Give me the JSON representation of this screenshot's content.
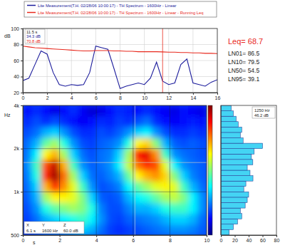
{
  "chart_data": [
    {
      "type": "line",
      "series": [
        {
          "name": "Lite Measurement(T.H. 02/28/06 10:00:17) - TH Spectrum - 1600Hz - Linear",
          "color": "#1c1c9c",
          "values": [
            35,
            38,
            55,
            72,
            68,
            45,
            30,
            28,
            30,
            29,
            30,
            45,
            78,
            76,
            74,
            50,
            25,
            28,
            30,
            32,
            30,
            38,
            58,
            34.3,
            30,
            32,
            55,
            62,
            32,
            30,
            28,
            33,
            36
          ]
        },
        {
          "name": "Lite Measurement(T.H. 02/28/06 10:00:17) - TH Spectrum - 1600Hz - Linear - Running Leq",
          "color": "#e8281c",
          "values": [
            78,
            77,
            76,
            75.5,
            75,
            74.5,
            74,
            73.5,
            73,
            72.5,
            72,
            72,
            72.5,
            72.5,
            72.5,
            72,
            72,
            71.5,
            71.5,
            71,
            71,
            71,
            71,
            70.8,
            70.5,
            70.5,
            70,
            70,
            69.5,
            69.5,
            69,
            69,
            68.7
          ]
        }
      ],
      "x": [
        0,
        0.5,
        1,
        1.5,
        2,
        2.5,
        3,
        3.5,
        4,
        4.5,
        5,
        5.5,
        6,
        6.5,
        7,
        7.5,
        8,
        8.5,
        9,
        9.5,
        10,
        10.5,
        11,
        11.5,
        12,
        12.5,
        13,
        13.5,
        14,
        14.5,
        15,
        15.5,
        16
      ],
      "xlim": [
        0,
        16
      ],
      "xticks": [
        0,
        2,
        4,
        6,
        8,
        10,
        12,
        14,
        16
      ],
      "ylim": [
        20,
        100
      ],
      "yticks": [
        20,
        40,
        60,
        80,
        100
      ],
      "y_label": "dB",
      "grid": true,
      "legend": "top",
      "cursor": {
        "x": 11.5,
        "texts": [
          "11.5 s",
          "34.3 dB",
          "70.8 dB"
        ]
      },
      "stats": [
        "Leq= 68.7",
        "LN01= 86.5",
        "LN10= 79.5",
        "LN50= 54.5",
        "LN95= 39.1"
      ]
    },
    {
      "type": "heatmap",
      "x_bins": [
        0,
        0.5,
        1,
        1.5,
        2,
        2.5,
        3,
        3.5,
        4,
        4.5,
        5,
        5.5,
        6,
        6.5,
        7,
        7.5,
        8,
        8.5,
        9,
        9.5,
        10
      ],
      "y_bins": [
        500,
        595,
        707,
        841,
        1000,
        1189,
        1414,
        1682,
        2000,
        2378,
        2828,
        3364,
        4000
      ],
      "cells": [
        [
          30,
          32,
          34,
          35,
          36,
          38,
          40,
          38,
          34,
          31,
          30,
          31,
          32,
          33,
          34,
          35,
          36,
          36,
          35,
          33
        ],
        [
          31,
          34,
          38,
          40,
          42,
          44,
          46,
          42,
          36,
          32,
          31,
          33,
          34,
          35,
          36,
          38,
          40,
          40,
          38,
          34
        ],
        [
          32,
          36,
          44,
          48,
          50,
          52,
          50,
          44,
          35,
          32,
          32,
          35,
          38,
          38,
          40,
          44,
          46,
          46,
          42,
          36
        ],
        [
          33,
          38,
          52,
          58,
          58,
          56,
          50,
          40,
          33,
          32,
          33,
          38,
          42,
          44,
          48,
          52,
          54,
          50,
          42,
          36
        ],
        [
          34,
          40,
          62,
          70,
          64,
          56,
          46,
          36,
          32,
          33,
          35,
          42,
          48,
          52,
          56,
          58,
          56,
          46,
          38,
          34
        ],
        [
          35,
          44,
          70,
          78,
          66,
          52,
          40,
          34,
          33,
          35,
          38,
          48,
          58,
          62,
          64,
          60,
          50,
          40,
          35,
          33
        ],
        [
          36,
          46,
          68,
          76,
          62,
          46,
          36,
          33,
          34,
          36,
          42,
          54,
          66,
          70,
          68,
          56,
          42,
          36,
          34,
          33
        ],
        [
          35,
          42,
          58,
          62,
          52,
          40,
          34,
          32,
          34,
          35,
          40,
          52,
          72,
          74,
          64,
          46,
          36,
          34,
          33,
          32
        ],
        [
          34,
          38,
          48,
          52,
          44,
          36,
          32,
          31,
          33,
          34,
          36,
          44,
          58,
          60,
          50,
          38,
          33,
          32,
          33,
          32
        ],
        [
          32,
          34,
          38,
          40,
          36,
          32,
          30,
          30,
          32,
          31,
          33,
          36,
          40,
          42,
          36,
          32,
          30,
          30,
          31,
          30
        ],
        [
          30,
          32,
          30,
          32,
          30,
          28,
          27,
          28,
          30,
          29,
          31,
          30,
          32,
          34,
          30,
          28,
          27,
          28,
          29,
          28
        ],
        [
          28,
          30,
          28,
          26,
          28,
          30,
          27,
          25,
          26,
          28,
          30,
          29,
          28,
          30,
          28,
          27,
          26,
          28,
          27,
          26
        ]
      ],
      "color_range": [
        20,
        80
      ],
      "xlim": [
        0,
        10
      ],
      "xticks": [
        0,
        2,
        4,
        6,
        8,
        10
      ],
      "ylim": [
        500,
        4000
      ],
      "yticks": [
        500,
        {
          "value": 1000,
          "label": "1k"
        },
        {
          "value": 2000,
          "label": "2k"
        },
        {
          "value": 4000,
          "label": "4k"
        }
      ],
      "log": "y",
      "x_label": "s",
      "y_label": "Hz",
      "grid": true,
      "cursor": {
        "x": 6.1,
        "y": 1600,
        "headers": [
          "X",
          "Y",
          "Z"
        ],
        "texts": [
          "6.1 s",
          "1600 Hz",
          "60.0 dB"
        ]
      }
    },
    {
      "type": "bar",
      "orientation": "horizontal",
      "bins": [
        500,
        545,
        595,
        648,
        707,
        771,
        841,
        917,
        1000,
        1091,
        1189,
        1297,
        1414,
        1542,
        1682,
        1834,
        2000,
        2181,
        2378,
        2594,
        2828,
        3084,
        3364,
        3668,
        4000
      ],
      "values": [
        12,
        18,
        24,
        30,
        28,
        35,
        38,
        40,
        33,
        36,
        46.2,
        42,
        38,
        46,
        44,
        48,
        60,
        32,
        28,
        30,
        25,
        22,
        18,
        15
      ],
      "color": "#44d4f4",
      "xlim": [
        0,
        80
      ],
      "xticks": [
        0,
        20,
        40,
        60,
        80
      ],
      "ylim": [
        500,
        4000
      ],
      "log": "y",
      "tick_labels": "x",
      "annotation": [
        "1250 Hz",
        "46.2 dB"
      ]
    }
  ]
}
